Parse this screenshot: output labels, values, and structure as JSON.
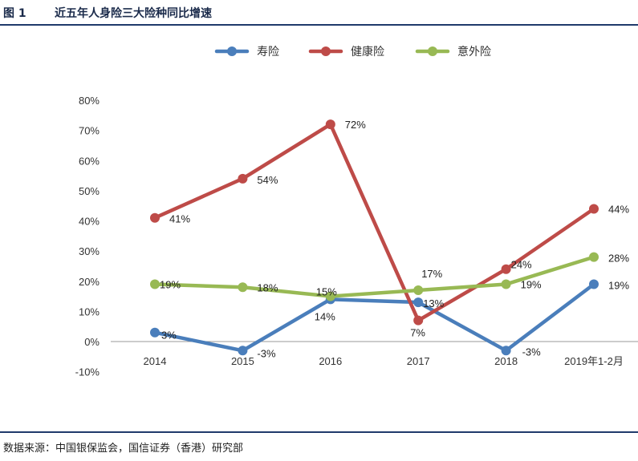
{
  "header": {
    "figure_label": "图 1",
    "title": "近五年人身险三大险种同比增速"
  },
  "footer": {
    "source": "数据来源：中国银保监会，国信证券（香港）研究部"
  },
  "colors": {
    "rule": "#1f3a6b",
    "zero_line": "#9a9a9a"
  },
  "chart_data": {
    "type": "line",
    "title": "近五年人身险三大险种同比增速",
    "xlabel": "",
    "ylabel": "",
    "categories": [
      "2014",
      "2015",
      "2016",
      "2017",
      "2018",
      "2019年1-2月"
    ],
    "ylim": [
      -10,
      80
    ],
    "yticks": [
      -10,
      0,
      10,
      20,
      30,
      40,
      50,
      60,
      70,
      80
    ],
    "ytick_labels": [
      "-10%",
      "0%",
      "10%",
      "20%",
      "30%",
      "40%",
      "50%",
      "60%",
      "70%",
      "80%"
    ],
    "grid": false,
    "legend_position": "top-center",
    "series": [
      {
        "name": "寿险",
        "color": "#4a7ebb",
        "values": [
          3,
          -3,
          14,
          13,
          -3,
          19
        ],
        "labels": [
          "3%",
          "-3%",
          "14%",
          "13%",
          "-3%",
          "19%"
        ]
      },
      {
        "name": "健康险",
        "color": "#be4b48",
        "values": [
          41,
          54,
          72,
          7,
          24,
          44
        ],
        "labels": [
          "41%",
          "54%",
          "72%",
          "7%",
          "24%",
          "44%"
        ]
      },
      {
        "name": "意外险",
        "color": "#98b954",
        "values": [
          19,
          18,
          15,
          17,
          19,
          28
        ],
        "labels": [
          "19%",
          "18%",
          "15%",
          "17%",
          "19%",
          "28%"
        ]
      }
    ]
  }
}
